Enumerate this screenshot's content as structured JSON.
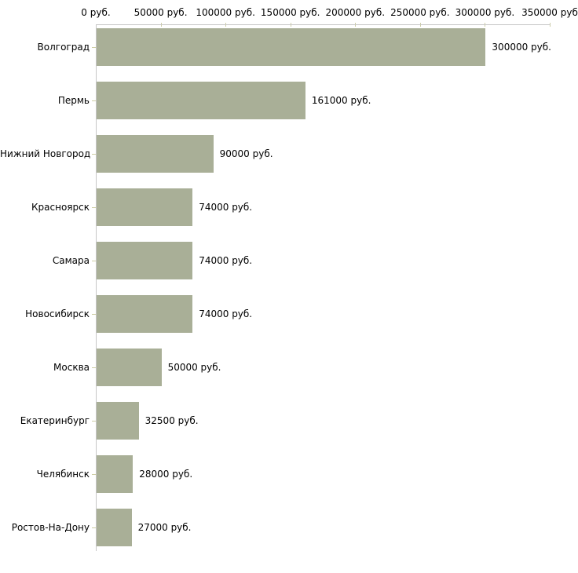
{
  "chart_data": {
    "type": "bar",
    "orientation": "horizontal",
    "title": "",
    "xlabel": "",
    "ylabel": "",
    "unit": "руб.",
    "categories": [
      "Волгоград",
      "Пермь",
      "Нижний Новгород",
      "Красноярск",
      "Самара",
      "Новосибирск",
      "Москва",
      "Екатеринбург",
      "Челябинск",
      "Ростов-На-Дону"
    ],
    "values": [
      300000,
      161000,
      90000,
      74000,
      74000,
      74000,
      50000,
      32500,
      28000,
      27000
    ],
    "value_labels": [
      "300000 руб.",
      "161000 руб.",
      "90000 руб.",
      "74000 руб.",
      "74000 руб.",
      "74000 руб.",
      "50000 руб.",
      "32500 руб.",
      "28000 руб.",
      "27000 руб."
    ],
    "x_axis": {
      "position": "top",
      "min": 0,
      "max": 350000,
      "ticks": [
        0,
        50000,
        100000,
        150000,
        200000,
        250000,
        300000,
        350000
      ],
      "tick_labels": [
        "0 руб.",
        "50000 руб.",
        "100000 руб.",
        "150000 руб.",
        "200000 руб.",
        "250000 руб.",
        "300000 руб.",
        "350000 руб"
      ]
    },
    "legend": false,
    "grid": false,
    "colors": {
      "bar": "#a9af97",
      "axis_line": "#c6c6c6",
      "tick_mark": "#cdcda4",
      "text": "#000000",
      "background": "#ffffff"
    }
  }
}
